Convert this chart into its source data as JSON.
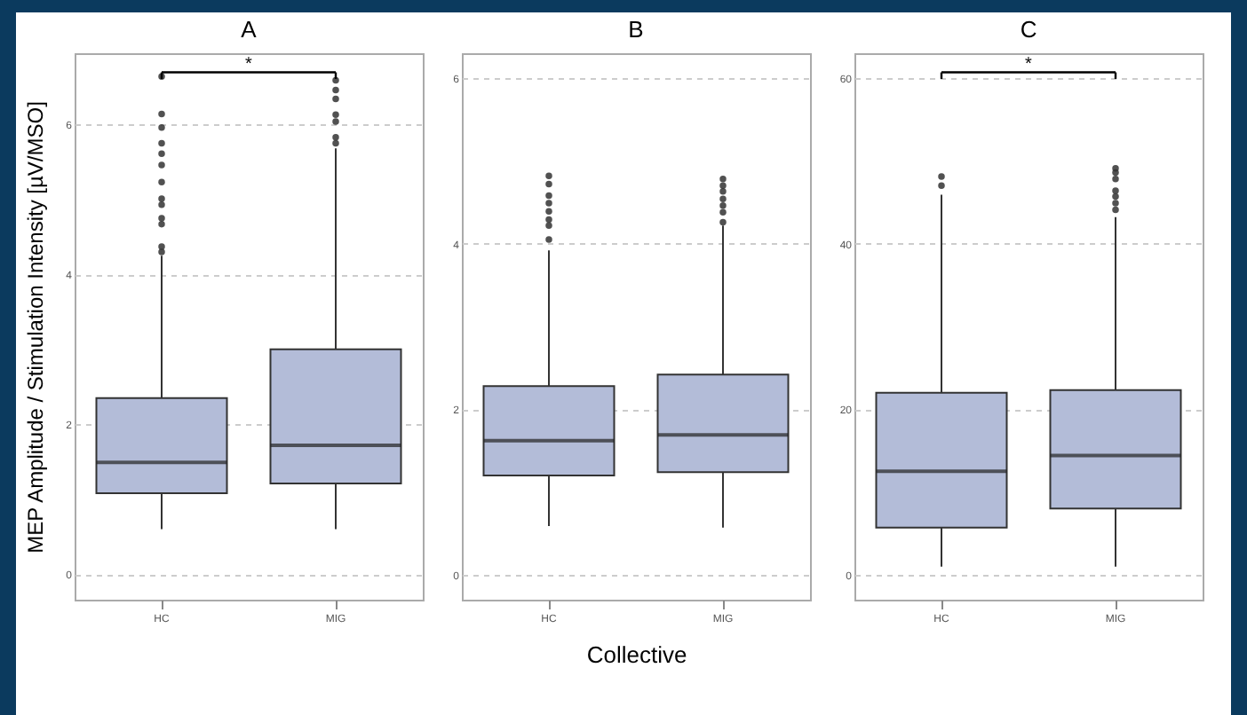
{
  "chart_data": [
    {
      "type": "box",
      "title": "A",
      "ylabel": "MEP Amplitude / Stimulation Intensity [µV/MSO]",
      "categories": [
        "HC",
        "MIG"
      ],
      "color": "#b3bcd8",
      "ylim": [
        -0.34,
        6.95
      ],
      "yticks": [
        0,
        2,
        4,
        6
      ],
      "grid": "y",
      "annotations": [
        "*"
      ],
      "boxes": [
        {
          "low": 0.6,
          "q1": 1.08,
          "median": 1.49,
          "q3": 2.35,
          "high": 4.25,
          "outliers": [
            4.3,
            4.37,
            4.67,
            4.75,
            4.93,
            5.01,
            5.23,
            5.46,
            5.61,
            5.75,
            5.96,
            6.14,
            6.64
          ]
        },
        {
          "low": 0.6,
          "q1": 1.21,
          "median": 1.72,
          "q3": 3.0,
          "high": 5.68,
          "outliers": [
            5.75,
            5.83,
            6.04,
            6.13,
            6.34,
            6.46,
            6.59
          ]
        }
      ]
    },
    {
      "type": "box",
      "title": "B",
      "xlabel": "Collective",
      "categories": [
        "HC",
        "MIG"
      ],
      "color": "#b3bcd8",
      "ylim": [
        -0.3,
        6.3
      ],
      "yticks": [
        0,
        2,
        4,
        6
      ],
      "grid": "y",
      "boxes": [
        {
          "low": 0.59,
          "q1": 1.2,
          "median": 1.62,
          "q3": 2.28,
          "high": 3.92,
          "outliers": [
            4.05,
            4.22,
            4.29,
            4.39,
            4.49,
            4.58,
            4.72,
            4.82
          ]
        },
        {
          "low": 0.57,
          "q1": 1.24,
          "median": 1.69,
          "q3": 2.42,
          "high": 4.22,
          "outliers": [
            4.26,
            4.38,
            4.46,
            4.54,
            4.63,
            4.7,
            4.78
          ]
        }
      ]
    },
    {
      "type": "box",
      "title": "C",
      "categories": [
        "HC",
        "MIG"
      ],
      "color": "#b3bcd8",
      "ylim": [
        -3,
        63
      ],
      "yticks": [
        0,
        20,
        40,
        60
      ],
      "grid": "y",
      "annotations": [
        "*"
      ],
      "boxes": [
        {
          "low": 1.0,
          "q1": 5.7,
          "median": 12.5,
          "q3": 22.0,
          "high": 45.9,
          "outliers": [
            47.0,
            48.1
          ]
        },
        {
          "low": 1.0,
          "q1": 8.0,
          "median": 14.4,
          "q3": 22.3,
          "high": 43.2,
          "outliers": [
            44.1,
            44.9,
            45.7,
            46.4,
            47.8,
            48.6,
            49.1
          ]
        }
      ]
    }
  ]
}
